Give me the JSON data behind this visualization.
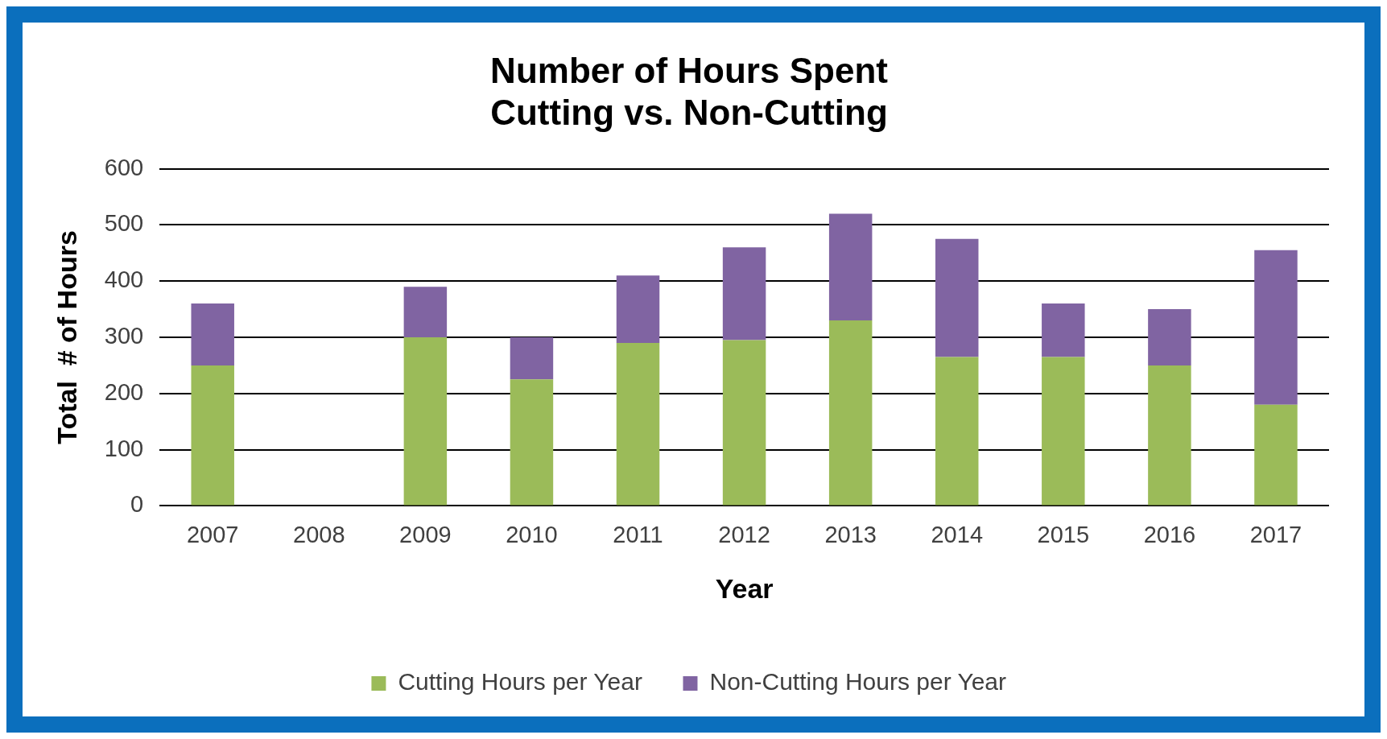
{
  "chart_data": {
    "type": "bar",
    "title": [
      "Number of Hours Spent",
      "Cutting vs. Non-Cutting"
    ],
    "xlabel": "Year",
    "ylabel": "Total  # of Hours",
    "categories": [
      "2007",
      "2008",
      "2009",
      "2010",
      "2011",
      "2012",
      "2013",
      "2014",
      "2015",
      "2016",
      "2017"
    ],
    "stacked": true,
    "series": [
      {
        "name": "Cutting Hours per Year",
        "color": "#9bbb59",
        "values": [
          250,
          null,
          300,
          225,
          290,
          295,
          330,
          265,
          265,
          250,
          180
        ]
      },
      {
        "name": "Non-Cutting Hours per Year",
        "color": "#8064a2",
        "values": [
          110,
          null,
          90,
          75,
          120,
          165,
          190,
          210,
          95,
          100,
          275
        ]
      }
    ],
    "ylim": [
      0,
      600
    ],
    "yticks": [
      0,
      100,
      200,
      300,
      400,
      500,
      600
    ],
    "grid": "y",
    "legend": "bottom"
  }
}
